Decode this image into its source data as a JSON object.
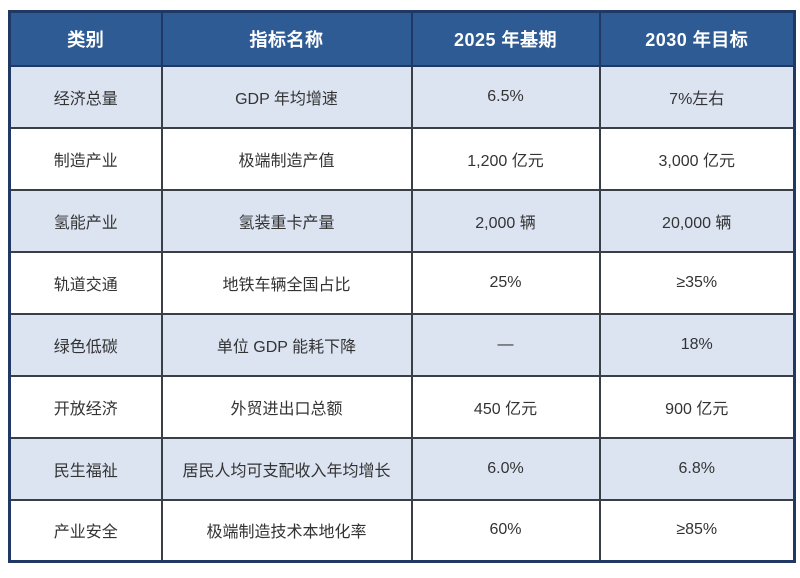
{
  "table": {
    "columns": [
      "类别",
      "指标名称",
      "2025 年基期",
      "2030 年目标"
    ],
    "rows": [
      {
        "category": "经济总量",
        "indicator": "GDP 年均增速",
        "base_2025": "6.5%",
        "target_2030": "7%左右"
      },
      {
        "category": "制造产业",
        "indicator": "极端制造产值",
        "base_2025": "1,200 亿元",
        "target_2030": "3,000 亿元"
      },
      {
        "category": "氢能产业",
        "indicator": "氢装重卡产量",
        "base_2025": "2,000 辆",
        "target_2030": "20,000 辆"
      },
      {
        "category": "轨道交通",
        "indicator": "地铁车辆全国占比",
        "base_2025": "25%",
        "target_2030": "≥35%"
      },
      {
        "category": "绿色低碳",
        "indicator": "单位 GDP 能耗下降",
        "base_2025": "—",
        "target_2030": "18%"
      },
      {
        "category": "开放经济",
        "indicator": "外贸进出口总额",
        "base_2025": "450 亿元",
        "target_2030": "900 亿元"
      },
      {
        "category": "民生福祉",
        "indicator": "居民人均可支配收入年均增长",
        "base_2025": "6.0%",
        "target_2030": "6.8%"
      },
      {
        "category": "产业安全",
        "indicator": "极端制造技术本地化率",
        "base_2025": "60%",
        "target_2030": "≥85%"
      }
    ]
  },
  "colors": {
    "header_background": "#2f5b95",
    "header_text": "#ffffff",
    "row_alt_background": "#dce4f2",
    "row_background": "#ffffff",
    "outer_border": "#1f3864",
    "inner_border": "#3a3f47",
    "body_text": "#333333"
  }
}
